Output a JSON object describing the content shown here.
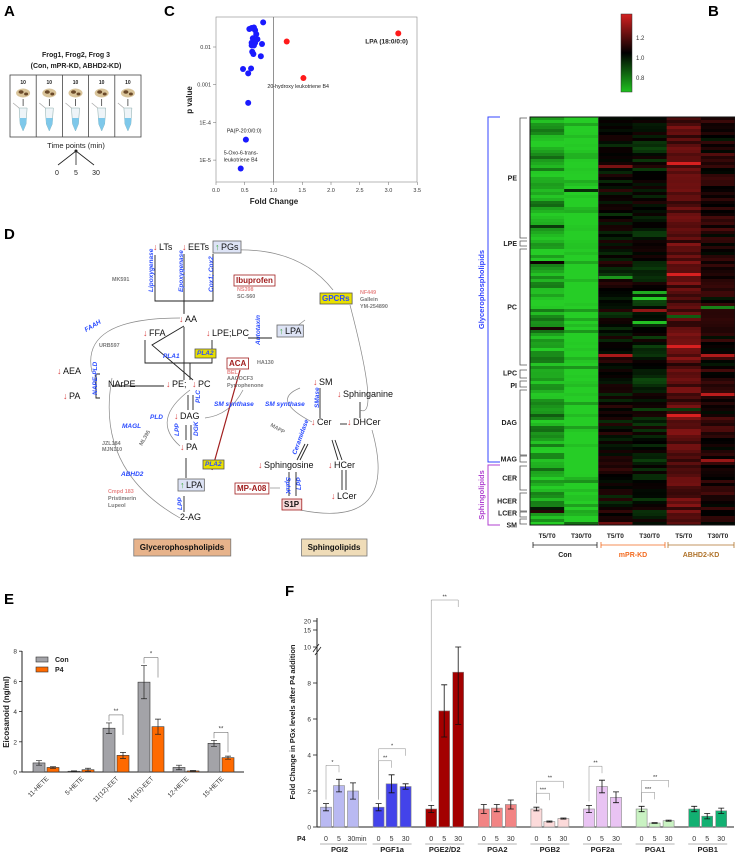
{
  "panels": {
    "A": "A",
    "B": "B",
    "C": "C",
    "D": "D",
    "E": "E",
    "F": "F"
  },
  "panel_a": {
    "title_line1": "Frog1, Frog2, Frog 3",
    "title_line2": "(Con, mPR-KD, ABHD2-KD)",
    "egg_counts": [
      "10",
      "10",
      "10",
      "10",
      "10"
    ],
    "time_label": "Time points (min)",
    "time_points": [
      "0",
      "5",
      "30"
    ]
  },
  "pathway": {
    "items": [
      {
        "text": "LTs",
        "style": "met",
        "change": "down"
      },
      {
        "text": "EETs",
        "style": "met",
        "change": "down"
      },
      {
        "text": "PGs",
        "style": "metbox",
        "change": "up"
      },
      {
        "text": "Lipoxygenase",
        "style": "enz"
      },
      {
        "text": "Epoxygenase",
        "style": "enz"
      },
      {
        "text": "Cox1; Cox2",
        "style": "enz"
      },
      {
        "text": "MK591",
        "style": "inh"
      },
      {
        "text": "Ibuprofen",
        "style": "drugbox"
      },
      {
        "text": "NS398",
        "style": "inhp"
      },
      {
        "text": "SC-560",
        "style": "inh"
      },
      {
        "text": "AA",
        "style": "met",
        "change": "down"
      },
      {
        "text": "FAAH",
        "style": "enz"
      },
      {
        "text": "URB597",
        "style": "inh"
      },
      {
        "text": "FFA",
        "style": "met",
        "change": "down"
      },
      {
        "text": "LPE;LPC",
        "style": "met",
        "change": "down"
      },
      {
        "text": "PLA1",
        "style": "enz"
      },
      {
        "text": "PLA2",
        "style": "enzbox"
      },
      {
        "text": "ACA",
        "style": "drugbox"
      },
      {
        "text": "BEL",
        "style": "inhp"
      },
      {
        "text": "AACOCF3",
        "style": "inh"
      },
      {
        "text": "Pyrrophenone",
        "style": "inh"
      },
      {
        "text": "AEA",
        "style": "met",
        "change": "down"
      },
      {
        "text": "NAPE-PLD",
        "style": "enz"
      },
      {
        "text": "NArPE",
        "style": "met"
      },
      {
        "text": "PE;",
        "style": "met",
        "change": "down"
      },
      {
        "text": "PC",
        "style": "met",
        "change": "down"
      },
      {
        "text": "PA",
        "style": "met",
        "change": "down"
      },
      {
        "text": "PLC",
        "style": "enz"
      },
      {
        "text": "SM synthase",
        "style": "enz"
      },
      {
        "text": "DAG",
        "style": "met",
        "change": "down"
      },
      {
        "text": "PLD",
        "style": "enz"
      },
      {
        "text": "ML395",
        "style": "inh"
      },
      {
        "text": "LPP",
        "style": "enz"
      },
      {
        "text": "DGK",
        "style": "enz"
      },
      {
        "text": "PA",
        "style": "met",
        "change": "down"
      },
      {
        "text": "MAGL",
        "style": "enz"
      },
      {
        "text": "JZL184",
        "style": "inh"
      },
      {
        "text": "MJN110",
        "style": "inh"
      },
      {
        "text": "PLA2",
        "style": "enzbox"
      },
      {
        "text": "ABHD2",
        "style": "enz"
      },
      {
        "text": "Cmpd 183",
        "style": "inhp"
      },
      {
        "text": "Pristimerin",
        "style": "inh"
      },
      {
        "text": "Lupeol",
        "style": "inh"
      },
      {
        "text": "LPA",
        "style": "metbox",
        "change": "up"
      },
      {
        "text": "LPP",
        "style": "enz"
      },
      {
        "text": "2-AG",
        "style": "met"
      },
      {
        "text": "GPCRs",
        "style": "receptor"
      },
      {
        "text": "NF449",
        "style": "inhp"
      },
      {
        "text": "Gallein",
        "style": "inh"
      },
      {
        "text": "YM-254890",
        "style": "inh"
      },
      {
        "text": "Autotaxin",
        "style": "enz"
      },
      {
        "text": "LPA",
        "style": "metbox",
        "change": "up"
      },
      {
        "text": "HA130",
        "style": "inh"
      },
      {
        "text": "SM",
        "style": "met",
        "change": "down"
      },
      {
        "text": "Sphinganine",
        "style": "met",
        "change": "down"
      },
      {
        "text": "SM synthase",
        "style": "enz"
      },
      {
        "text": "SMase",
        "style": "enz"
      },
      {
        "text": "Cer",
        "style": "met",
        "change": "down"
      },
      {
        "text": "DHCer",
        "style": "met",
        "change": "down"
      },
      {
        "text": "MAPP",
        "style": "inh"
      },
      {
        "text": "Ceramidase",
        "style": "enz"
      },
      {
        "text": "Sphingosine",
        "style": "met",
        "change": "down"
      },
      {
        "text": "HCer",
        "style": "met",
        "change": "down"
      },
      {
        "text": "MP-A08",
        "style": "drugbox"
      },
      {
        "text": "SphK",
        "style": "enz"
      },
      {
        "text": "LPP",
        "style": "enz"
      },
      {
        "text": "S1P",
        "style": "s1pbox"
      },
      {
        "text": "LCer",
        "style": "met",
        "change": "down"
      },
      {
        "text": "Glycerophospholipids",
        "style": "class1"
      },
      {
        "text": "Sphingolipids",
        "style": "class2"
      }
    ],
    "colors": {
      "down": "#d94545",
      "up": "#3aa53a",
      "enzyme": "#2a4bff",
      "inhibitor": "#7a7a7a",
      "drug": "#a11e1e"
    }
  },
  "chart_data": [
    {
      "panel": "C",
      "type": "scatter",
      "xlabel": "Fold Change",
      "ylabel": "p value",
      "xlim": [
        0,
        3.5
      ],
      "ylim": [
        2.6e-06,
        0.063
      ],
      "y_scale": "log",
      "x_ticks": [
        "0.0",
        "0.5",
        "1.0",
        "1.5",
        "2.0",
        "2.5",
        "3.0",
        "3.5"
      ],
      "y_ticks": [
        "0.01",
        "0.001",
        "1E-4",
        "1E-5"
      ],
      "reference_line_x": 1.0,
      "series": [
        {
          "color": "#1a1aff",
          "points": [
            [
              0.82,
              0.045
            ],
            [
              0.58,
              0.03
            ],
            [
              0.62,
              0.032
            ],
            [
              0.66,
              0.033
            ],
            [
              0.68,
              0.028
            ],
            [
              0.7,
              0.022
            ],
            [
              0.64,
              0.017
            ],
            [
              0.72,
              0.016
            ],
            [
              0.62,
              0.013
            ],
            [
              0.68,
              0.013
            ],
            [
              0.66,
              0.011
            ],
            [
              0.62,
              0.011
            ],
            [
              0.8,
              0.012
            ],
            [
              0.63,
              0.0075
            ],
            [
              0.65,
              0.0065
            ],
            [
              0.78,
              0.0057
            ],
            [
              0.47,
              0.0026
            ],
            [
              0.61,
              0.0027
            ],
            [
              0.56,
              0.002
            ],
            [
              0.56,
              0.00033
            ],
            [
              0.52,
              3.5e-05
            ],
            [
              0.43,
              6e-06
            ]
          ]
        },
        {
          "color": "#ff1a1a",
          "points": [
            [
              1.23,
              0.014
            ],
            [
              1.52,
              0.0015
            ],
            [
              3.17,
              0.023
            ]
          ]
        }
      ],
      "annotations": [
        {
          "text": "LPA (18:0/0:0)",
          "x": 3.17,
          "y": 0.023
        },
        {
          "text": "20-hydroxy leukotriene B4",
          "x": 1.52,
          "y": 0.0015
        },
        {
          "text": "PA(P-20:0/0:0)",
          "x": 0.52,
          "y": 3.5e-05
        },
        {
          "text": "5-Oxo-6-trans-",
          "x": 0.43,
          "y": 6e-06
        },
        {
          "text": "leukotriene B4",
          "x": 0.43,
          "y": 6e-06
        }
      ]
    },
    {
      "panel": "B",
      "type": "heatmap",
      "columns": [
        "T5/T0",
        "T30/T0",
        "T5/T0",
        "T30/T0",
        "T5/T0",
        "T30/T0"
      ],
      "column_groups": [
        {
          "name": "Con",
          "color": "#222222"
        },
        {
          "name": "mPR-KD",
          "color": "#f26b21"
        },
        {
          "name": "ABHD2-KD",
          "color": "#b0742c"
        }
      ],
      "column_typical_values": [
        0.78,
        0.72,
        1.0,
        0.98,
        1.12,
        1.04
      ],
      "row_groups": [
        "PE",
        "LPE",
        "PC",
        "LPC",
        "PI",
        "DAG",
        "MAG",
        "CER",
        "HCER",
        "LCER",
        "SM"
      ],
      "row_classes": [
        {
          "name": "Glycerophospholipids",
          "color": "#3344ff"
        },
        {
          "name": "Sphingolipids",
          "color": "#b040d0"
        }
      ],
      "colorbar_ticks": [
        "1.2",
        "1.0",
        "0.8"
      ],
      "colorbar_range": [
        0.66,
        1.44
      ],
      "colorscale": [
        "#1fc01f",
        "#000000",
        "#d42020"
      ]
    },
    {
      "panel": "E",
      "type": "bar",
      "ylabel": "Eicosanoid (ng/ml)",
      "ylim": [
        0,
        8
      ],
      "y_ticks": [
        "0",
        "2",
        "4",
        "6",
        "8"
      ],
      "categories": [
        "11-HETE",
        "5-HETE",
        "11(12)-EET",
        "14(15)-EET",
        "12-HETE",
        "15-HETE"
      ],
      "legend_position": "top-left",
      "series": [
        {
          "name": "Con",
          "color": "#a3a3a8",
          "values": [
            0.6,
            0.05,
            2.9,
            5.95,
            0.3,
            1.9
          ],
          "errors": [
            0.15,
            0.03,
            0.35,
            1.1,
            0.15,
            0.2
          ]
        },
        {
          "name": "P4",
          "color": "#ff6a00",
          "values": [
            0.3,
            0.15,
            1.1,
            3.0,
            0.07,
            0.95
          ],
          "errors": [
            0.05,
            0.1,
            0.2,
            0.5,
            0.03,
            0.1
          ]
        }
      ],
      "significance": [
        {
          "category": "11(12)-EET",
          "label": "**"
        },
        {
          "category": "14(15)-EET",
          "label": "*"
        },
        {
          "category": "15-HETE",
          "label": "**"
        }
      ]
    },
    {
      "panel": "F",
      "type": "bar",
      "ylabel": "Fold  Change in PGx levels after P4 addition",
      "ylim": [
        0,
        20
      ],
      "y_axis_break": [
        10,
        15
      ],
      "y_ticks": [
        "0",
        "2",
        "4",
        "6",
        "8",
        "10",
        "15",
        "20"
      ],
      "x_prefix": "P4",
      "groups": [
        {
          "name": "PGI2",
          "color": "#b9b9f2",
          "time_labels": [
            "0",
            "5",
            "30min"
          ],
          "values": [
            1.1,
            2.3,
            2.0
          ],
          "errors": [
            0.2,
            0.35,
            0.45
          ]
        },
        {
          "name": "PGF1a",
          "color": "#4343ea",
          "time_labels": [
            "0",
            "5",
            "30"
          ],
          "values": [
            1.1,
            2.4,
            2.25
          ],
          "errors": [
            0.2,
            0.5,
            0.15
          ]
        },
        {
          "name": "PGE2/D2",
          "color": "#a30000",
          "time_labels": [
            "0",
            "5",
            "30"
          ],
          "values": [
            1.0,
            6.45,
            8.6
          ],
          "errors": [
            0.2,
            1.45,
            2.9
          ]
        },
        {
          "name": "PGA2",
          "color": "#f28484",
          "time_labels": [
            "0",
            "5",
            "30"
          ],
          "values": [
            1.0,
            1.05,
            1.25
          ],
          "errors": [
            0.25,
            0.2,
            0.25
          ]
        },
        {
          "name": "PGB2",
          "color": "#fcdada",
          "time_labels": [
            "0",
            "5",
            "30"
          ],
          "values": [
            1.0,
            0.3,
            0.47
          ],
          "errors": [
            0.1,
            0.03,
            0.03
          ]
        },
        {
          "name": "PGF2a",
          "color": "#e9c3f3",
          "time_labels": [
            "0",
            "5",
            "30"
          ],
          "values": [
            1.0,
            2.25,
            1.65
          ],
          "errors": [
            0.2,
            0.35,
            0.3
          ]
        },
        {
          "name": "PGA1",
          "color": "#c9f2c2",
          "time_labels": [
            "0",
            "5",
            "30"
          ],
          "values": [
            1.0,
            0.22,
            0.35
          ],
          "errors": [
            0.15,
            0.02,
            0.03
          ]
        },
        {
          "name": "PGB1",
          "color": "#12b072",
          "time_labels": [
            "0",
            "5",
            "30"
          ],
          "values": [
            1.0,
            0.6,
            0.9
          ],
          "errors": [
            0.15,
            0.15,
            0.15
          ]
        }
      ],
      "significance": [
        {
          "group": "PGI2",
          "from": 0,
          "to": 1,
          "label": "*"
        },
        {
          "group": "PGF1a",
          "from": 0,
          "to": 1,
          "label": "**"
        },
        {
          "group": "PGF1a",
          "from": 0,
          "to": 2,
          "label": "*"
        },
        {
          "group": "PGE2/D2",
          "from": 0,
          "to": 2,
          "label": "**"
        },
        {
          "group": "PGB2",
          "from": 0,
          "to": 1,
          "label": "***"
        },
        {
          "group": "PGB2",
          "from": 0,
          "to": 2,
          "label": "**"
        },
        {
          "group": "PGF2a",
          "from": 0,
          "to": 1,
          "label": "**"
        },
        {
          "group": "PGA1",
          "from": 0,
          "to": 1,
          "label": "***"
        },
        {
          "group": "PGA1",
          "from": 0,
          "to": 2,
          "label": "**"
        }
      ]
    }
  ]
}
